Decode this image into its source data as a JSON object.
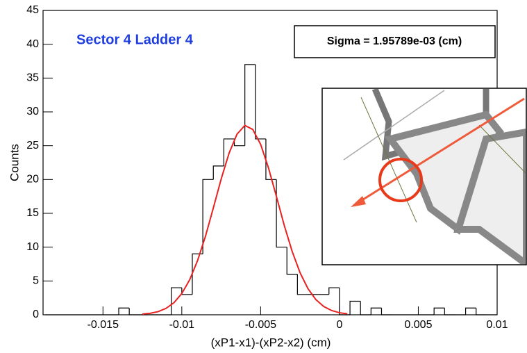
{
  "chart_data": {
    "type": "histogram",
    "title": "Sector 4 Ladder 4",
    "annotation": "Sigma = 1.95789e-03 (cm)",
    "x_label": "(xP1-x1)-(xP2-x2)  (cm)",
    "y_label": "Counts",
    "color": "#000000",
    "bins": [
      -0.018667,
      -0.018,
      -0.017333,
      -0.016667,
      -0.016,
      -0.015333,
      -0.014667,
      -0.014,
      -0.013333,
      -0.012667,
      -0.012,
      -0.011333,
      -0.010667,
      -0.01,
      -0.009333,
      -0.008667,
      -0.008,
      -0.007333,
      -0.006667,
      -0.006,
      -0.005333,
      -0.004667,
      -0.004,
      -0.003333,
      -0.002667,
      -0.002,
      -0.001333,
      -0.000667,
      0,
      0.000667,
      0.001333,
      0.002,
      0.002667,
      0.003333,
      0.004,
      0.004667,
      0.005333,
      0.006,
      0.006667,
      0.007333,
      0.008,
      0.008667,
      0.009333,
      0.01
    ],
    "values": [
      0,
      0,
      0,
      0,
      0,
      0,
      0,
      1,
      0,
      0,
      0,
      0,
      4,
      3,
      9,
      20,
      22,
      26,
      25,
      37,
      26,
      20,
      10,
      6,
      3,
      3,
      3,
      4,
      0,
      2,
      0,
      1,
      0,
      0,
      0,
      0,
      0,
      1,
      0,
      0,
      1,
      0,
      0
    ],
    "fit": {
      "color": "#e8201f",
      "x": [
        -0.0125,
        -0.012,
        -0.0115,
        -0.011,
        -0.0105,
        -0.01,
        -0.0095,
        -0.009,
        -0.0085,
        -0.008,
        -0.0075,
        -0.007,
        -0.0065,
        -0.006,
        -0.0055,
        -0.005,
        -0.0045,
        -0.004,
        -0.0035,
        -0.003,
        -0.0025,
        -0.002,
        -0.0015,
        -0.001,
        -0.0005,
        0,
        0.0005
      ],
      "values": [
        0.097,
        0.22,
        0.47,
        0.95,
        1.78,
        3.14,
        5.18,
        8.01,
        11.6,
        15.8,
        20.1,
        23.9,
        26.7,
        28.0,
        27.4,
        25.2,
        21.7,
        17.5,
        13.2,
        9.37,
        6.22,
        3.87,
        2.25,
        1.23,
        0.63,
        0.3,
        0.14
      ]
    },
    "xlim": [
      -0.0188,
      0.01
    ],
    "ylim": [
      0,
      45
    ],
    "xticks": [
      -0.015,
      -0.01,
      -0.005,
      0,
      0.005,
      0.01
    ],
    "yticks": [
      0,
      5,
      10,
      15,
      20,
      25,
      30,
      35,
      40,
      45
    ]
  }
}
